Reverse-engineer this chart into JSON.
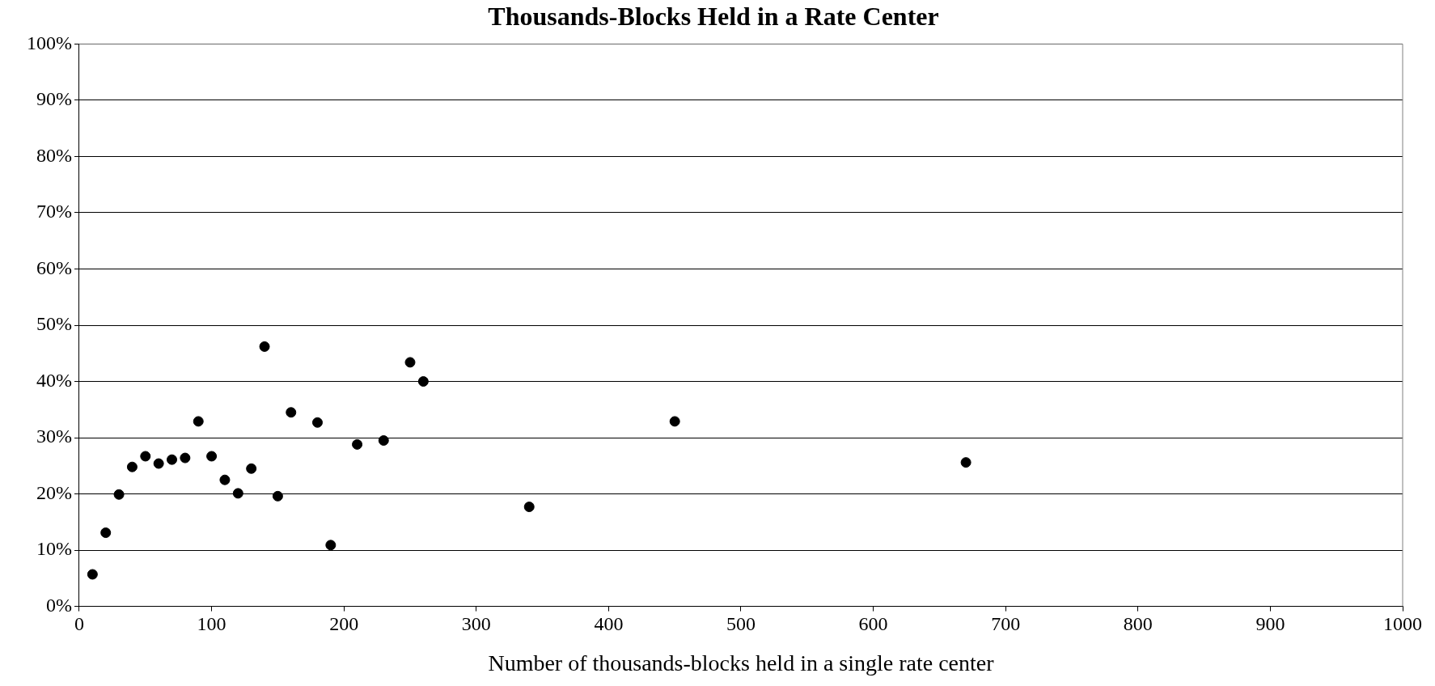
{
  "chart_data": {
    "type": "scatter",
    "title": "Thousands-Blocks Held in a Rate Center",
    "xlabel": "Number of thousands-blocks held in a single rate center",
    "x": [
      10,
      20,
      30,
      40,
      50,
      60,
      70,
      80,
      90,
      100,
      110,
      120,
      130,
      140,
      150,
      160,
      180,
      190,
      210,
      230,
      250,
      260,
      340,
      450,
      670
    ],
    "series": [
      {
        "color": "#000000",
        "values": [
          5.7,
          13.1,
          19.9,
          24.8,
          26.7,
          25.4,
          26.1,
          26.4,
          32.9,
          26.7,
          22.5,
          20.1,
          24.5,
          46.2,
          19.6,
          34.5,
          32.7,
          10.9,
          28.8,
          29.5,
          43.4,
          40.0,
          17.7,
          32.9,
          25.6
        ]
      }
    ],
    "xlim": [
      0,
      1000
    ],
    "xticks": [
      0,
      100,
      200,
      300,
      400,
      500,
      600,
      700,
      800,
      900,
      1000
    ],
    "ylim": [
      0,
      100
    ],
    "yticks": [
      {
        "value": 0,
        "label": "0%"
      },
      {
        "value": 10,
        "label": "10%"
      },
      {
        "value": 20,
        "label": "20%"
      },
      {
        "value": 30,
        "label": "30%"
      },
      {
        "value": 40,
        "label": "40%"
      },
      {
        "value": 50,
        "label": "50%"
      },
      {
        "value": 60,
        "label": "60%"
      },
      {
        "value": 70,
        "label": "70%"
      },
      {
        "value": 80,
        "label": "80%"
      },
      {
        "value": 90,
        "label": "90%"
      },
      {
        "value": 100,
        "label": "100%"
      }
    ],
    "grid": "y",
    "legend": false,
    "marker": "circle"
  }
}
